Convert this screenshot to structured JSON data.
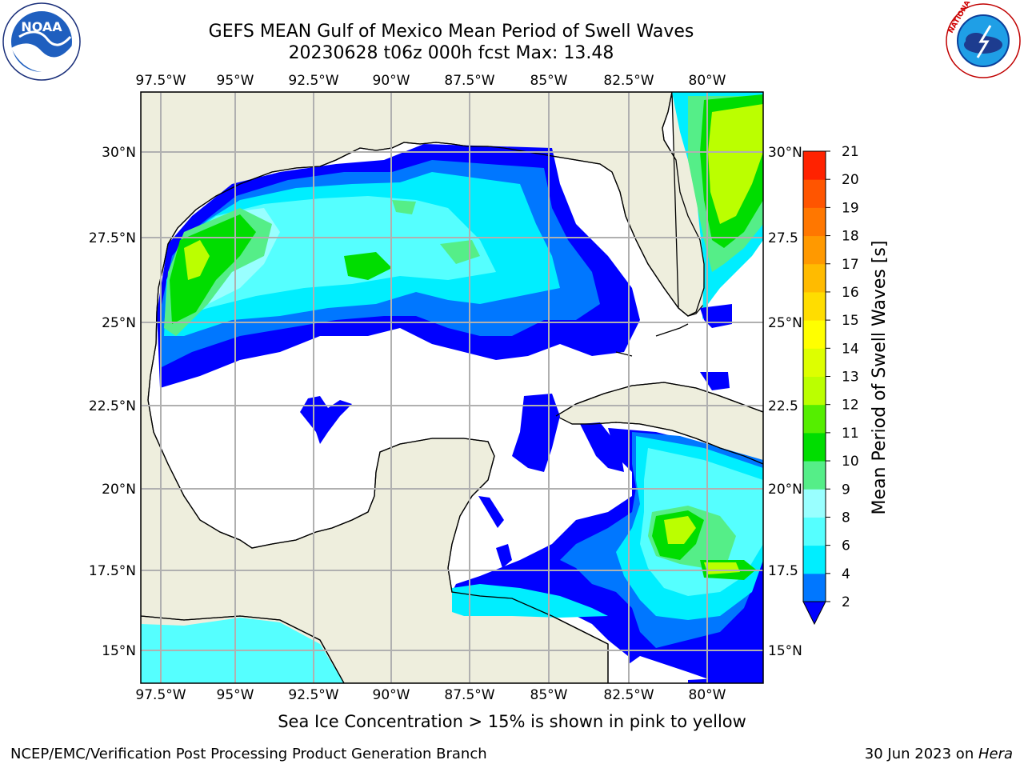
{
  "title": {
    "line1": "GEFS MEAN Gulf of Mexico Mean Period of Swell Waves",
    "line2": "20230628 t06z 000h fcst   Max: 13.48"
  },
  "map": {
    "lon_ticks_top": [
      "97.5°W",
      "95°W",
      "92.5°W",
      "90°W",
      "87.5°W",
      "85°W",
      "82.5°W",
      "80°W"
    ],
    "lon_ticks_bottom": [
      "97.5°W",
      "95°W",
      "92.5°W",
      "90°W",
      "87.5°W",
      "85°W",
      "82.5°W",
      "80°W"
    ],
    "lat_ticks_left": [
      "30°N",
      "27.5°N",
      "25°N",
      "22.5°N",
      "20°N",
      "17.5°N",
      "15°N"
    ],
    "lat_ticks_right": [
      "30°N",
      "27.5",
      "25°N",
      "22.5",
      "20°N",
      "17.5",
      "15°N"
    ],
    "land_color": "#eeeedd",
    "grid": true,
    "max_value": 13.48
  },
  "colorbar": {
    "label": "Mean Period of Swell Waves [s]",
    "ticks": [
      "2",
      "4",
      "6",
      "8",
      "9",
      "10",
      "11",
      "12",
      "13",
      "14",
      "15",
      "16",
      "17",
      "18",
      "19",
      "20",
      "21"
    ],
    "colors": [
      "#0077ff",
      "#00eeff",
      "#55ffff",
      "#99ffff",
      "#55ee88",
      "#00dd00",
      "#55ee00",
      "#bbff00",
      "#ddff00",
      "#ffff00",
      "#ffdd00",
      "#ffbb00",
      "#ff9900",
      "#ff7700",
      "#ff5500",
      "#ff2200",
      "#ff0000"
    ],
    "extend_color": "#0000ff"
  },
  "caption": "Sea Ice Concentration > 15% is shown in pink to yellow",
  "footer": {
    "left": "NCEP/EMC/Verification Post Processing Product Generation Branch",
    "right_date": "30 Jun 2023 on ",
    "right_machine": "Hera"
  },
  "logos": {
    "noaa_text": "NOAA",
    "nws_text": "NATIONAL WEATHER SERVICE"
  }
}
